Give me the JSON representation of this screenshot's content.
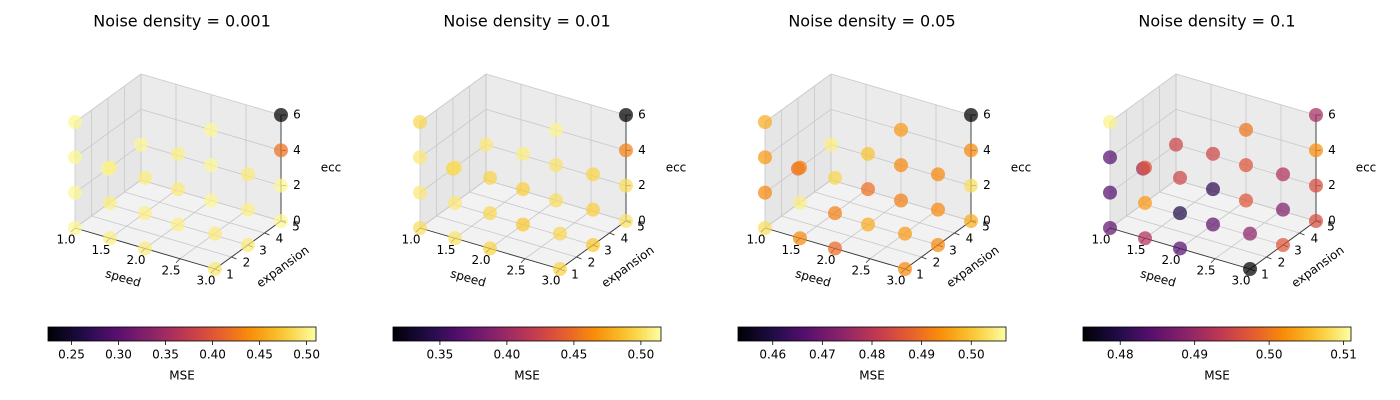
{
  "chart_data": [
    {
      "type": "scatter",
      "title": "Noise density = 0.001",
      "xlabel": "speed",
      "ylabel": "expansion",
      "zlabel": "ecc",
      "x_ticks": [
        "1.0",
        "1.5",
        "2.0",
        "2.5",
        "3.0"
      ],
      "y_ticks": [
        "1",
        "2",
        "3",
        "4",
        "5"
      ],
      "z_ticks": [
        "0",
        "2",
        "4",
        "6"
      ],
      "xlim": [
        1.0,
        3.0
      ],
      "ylim": [
        1,
        5
      ],
      "zlim": [
        0,
        6
      ],
      "colorbar": {
        "label": "MSE",
        "min": 0.225,
        "max": 0.51,
        "ticks": [
          "0.25",
          "0.30",
          "0.35",
          "0.40",
          "0.45",
          "0.50"
        ],
        "tick_values": [
          0.25,
          0.3,
          0.35,
          0.4,
          0.45,
          0.5
        ]
      },
      "points": [
        {
          "x": 1.0,
          "y": 1,
          "z": 0,
          "mse": 0.505
        },
        {
          "x": 1.5,
          "y": 1,
          "z": 0,
          "mse": 0.5
        },
        {
          "x": 2.0,
          "y": 1,
          "z": 0,
          "mse": 0.498
        },
        {
          "x": 3.0,
          "y": 1,
          "z": 0,
          "mse": 0.495
        },
        {
          "x": 1.0,
          "y": 1,
          "z": 2,
          "mse": 0.505
        },
        {
          "x": 1.5,
          "y": 1,
          "z": 2,
          "mse": 0.5
        },
        {
          "x": 2.0,
          "y": 1,
          "z": 2,
          "mse": 0.5
        },
        {
          "x": 3.0,
          "y": 1,
          "z": 2,
          "mse": 0.497
        },
        {
          "x": 1.0,
          "y": 1,
          "z": 4,
          "mse": 0.505
        },
        {
          "x": 1.5,
          "y": 1,
          "z": 4,
          "mse": 0.5
        },
        {
          "x": 2.0,
          "y": 1,
          "z": 4,
          "mse": 0.498
        },
        {
          "x": 1.0,
          "y": 1,
          "z": 6,
          "mse": 0.505
        },
        {
          "x": 2.0,
          "y": 3,
          "z": 0,
          "mse": 0.5
        },
        {
          "x": 3.0,
          "y": 3,
          "z": 0,
          "mse": 0.497
        },
        {
          "x": 1.0,
          "y": 3,
          "z": 2,
          "mse": 0.505
        },
        {
          "x": 2.0,
          "y": 3,
          "z": 2,
          "mse": 0.497
        },
        {
          "x": 3.0,
          "y": 3,
          "z": 2,
          "mse": 0.5
        },
        {
          "x": 2.0,
          "y": 3,
          "z": 4,
          "mse": 0.5
        },
        {
          "x": 3.0,
          "y": 3,
          "z": 4,
          "mse": 0.497
        },
        {
          "x": 2.0,
          "y": 5,
          "z": 0,
          "mse": 0.505
        },
        {
          "x": 3.0,
          "y": 5,
          "z": 0,
          "mse": 0.505
        },
        {
          "x": 1.0,
          "y": 5,
          "z": 2,
          "mse": 0.505
        },
        {
          "x": 2.0,
          "y": 5,
          "z": 2,
          "mse": 0.505
        },
        {
          "x": 3.0,
          "y": 5,
          "z": 2,
          "mse": 0.505
        },
        {
          "x": 2.0,
          "y": 5,
          "z": 4,
          "mse": 0.505
        },
        {
          "x": 3.0,
          "y": 5,
          "z": 4,
          "mse": 0.42
        },
        {
          "x": 3.0,
          "y": 5,
          "z": 6,
          "mse": 0.225
        }
      ]
    },
    {
      "type": "scatter",
      "title": "Noise density = 0.01",
      "xlabel": "speed",
      "ylabel": "expansion",
      "zlabel": "ecc",
      "x_ticks": [
        "1.0",
        "1.5",
        "2.0",
        "2.5",
        "3.0"
      ],
      "y_ticks": [
        "1",
        "2",
        "3",
        "4",
        "5"
      ],
      "z_ticks": [
        "0",
        "2",
        "4",
        "6"
      ],
      "xlim": [
        1.0,
        3.0
      ],
      "ylim": [
        1,
        5
      ],
      "zlim": [
        0,
        6
      ],
      "colorbar": {
        "label": "MSE",
        "min": 0.315,
        "max": 0.515,
        "ticks": [
          "0.35",
          "0.40",
          "0.45",
          "0.50"
        ],
        "tick_values": [
          0.35,
          0.4,
          0.45,
          0.5
        ]
      },
      "points": [
        {
          "x": 1.0,
          "y": 1,
          "z": 0,
          "mse": 0.5
        },
        {
          "x": 1.5,
          "y": 1,
          "z": 0,
          "mse": 0.502
        },
        {
          "x": 2.0,
          "y": 1,
          "z": 0,
          "mse": 0.495
        },
        {
          "x": 3.0,
          "y": 1,
          "z": 0,
          "mse": 0.495
        },
        {
          "x": 1.0,
          "y": 1,
          "z": 2,
          "mse": 0.505
        },
        {
          "x": 1.5,
          "y": 1,
          "z": 2,
          "mse": 0.505
        },
        {
          "x": 2.0,
          "y": 1,
          "z": 2,
          "mse": 0.497
        },
        {
          "x": 3.0,
          "y": 1,
          "z": 2,
          "mse": 0.497
        },
        {
          "x": 1.0,
          "y": 1,
          "z": 4,
          "mse": 0.505
        },
        {
          "x": 1.5,
          "y": 1,
          "z": 4,
          "mse": 0.5
        },
        {
          "x": 2.0,
          "y": 1,
          "z": 4,
          "mse": 0.495
        },
        {
          "x": 1.0,
          "y": 1,
          "z": 6,
          "mse": 0.497
        },
        {
          "x": 2.0,
          "y": 3,
          "z": 0,
          "mse": 0.49
        },
        {
          "x": 3.0,
          "y": 3,
          "z": 0,
          "mse": 0.49
        },
        {
          "x": 1.0,
          "y": 3,
          "z": 2,
          "mse": 0.495
        },
        {
          "x": 2.0,
          "y": 3,
          "z": 2,
          "mse": 0.493
        },
        {
          "x": 3.0,
          "y": 3,
          "z": 2,
          "mse": 0.493
        },
        {
          "x": 2.0,
          "y": 3,
          "z": 4,
          "mse": 0.507
        },
        {
          "x": 3.0,
          "y": 3,
          "z": 4,
          "mse": 0.495
        },
        {
          "x": 2.0,
          "y": 5,
          "z": 0,
          "mse": 0.5
        },
        {
          "x": 3.0,
          "y": 5,
          "z": 0,
          "mse": 0.502
        },
        {
          "x": 1.0,
          "y": 5,
          "z": 2,
          "mse": 0.505
        },
        {
          "x": 2.0,
          "y": 5,
          "z": 2,
          "mse": 0.502
        },
        {
          "x": 3.0,
          "y": 5,
          "z": 2,
          "mse": 0.5
        },
        {
          "x": 2.0,
          "y": 5,
          "z": 4,
          "mse": 0.51
        },
        {
          "x": 3.0,
          "y": 5,
          "z": 4,
          "mse": 0.46
        },
        {
          "x": 3.0,
          "y": 5,
          "z": 6,
          "mse": 0.315
        }
      ]
    },
    {
      "type": "scatter",
      "title": "Noise density = 0.05",
      "xlabel": "speed",
      "ylabel": "expansion",
      "zlabel": "ecc",
      "x_ticks": [
        "1.0",
        "1.5",
        "2.0",
        "2.5",
        "3.0"
      ],
      "y_ticks": [
        "1",
        "2",
        "3",
        "4",
        "5"
      ],
      "z_ticks": [
        "0",
        "2",
        "4",
        "6"
      ],
      "xlim": [
        1.0,
        3.0
      ],
      "ylim": [
        1,
        5
      ],
      "zlim": [
        0,
        6
      ],
      "colorbar": {
        "label": "MSE",
        "min": 0.453,
        "max": 0.507,
        "ticks": [
          "0.46",
          "0.47",
          "0.48",
          "0.49",
          "0.50"
        ],
        "tick_values": [
          0.46,
          0.47,
          0.48,
          0.49,
          0.5
        ]
      },
      "points": [
        {
          "x": 1.0,
          "y": 1,
          "z": 0,
          "mse": 0.503
        },
        {
          "x": 1.5,
          "y": 1,
          "z": 0,
          "mse": 0.493
        },
        {
          "x": 2.0,
          "y": 1,
          "z": 0,
          "mse": 0.489
        },
        {
          "x": 3.0,
          "y": 1,
          "z": 0,
          "mse": 0.493
        },
        {
          "x": 1.0,
          "y": 1,
          "z": 2,
          "mse": 0.493
        },
        {
          "x": 1.5,
          "y": 1,
          "z": 2,
          "mse": 0.505
        },
        {
          "x": 2.0,
          "y": 1,
          "z": 2,
          "mse": 0.492
        },
        {
          "x": 3.0,
          "y": 1,
          "z": 2,
          "mse": 0.495
        },
        {
          "x": 1.0,
          "y": 1,
          "z": 4,
          "mse": 0.495
        },
        {
          "x": 1.5,
          "y": 1,
          "z": 4,
          "mse": 0.492
        },
        {
          "x": 2.0,
          "y": 1,
          "z": 4,
          "mse": 0.502
        },
        {
          "x": 1.0,
          "y": 1,
          "z": 6,
          "mse": 0.497
        },
        {
          "x": 2.0,
          "y": 3,
          "z": 0,
          "mse": 0.497
        },
        {
          "x": 3.0,
          "y": 3,
          "z": 0,
          "mse": 0.493
        },
        {
          "x": 1.0,
          "y": 3,
          "z": 2,
          "mse": 0.489
        },
        {
          "x": 2.0,
          "y": 3,
          "z": 2,
          "mse": 0.49
        },
        {
          "x": 3.0,
          "y": 3,
          "z": 2,
          "mse": 0.493
        },
        {
          "x": 2.0,
          "y": 3,
          "z": 4,
          "mse": 0.5
        },
        {
          "x": 3.0,
          "y": 3,
          "z": 4,
          "mse": 0.493
        },
        {
          "x": 2.0,
          "y": 5,
          "z": 0,
          "mse": 0.492
        },
        {
          "x": 3.0,
          "y": 5,
          "z": 0,
          "mse": 0.497
        },
        {
          "x": 1.0,
          "y": 5,
          "z": 2,
          "mse": 0.505
        },
        {
          "x": 2.0,
          "y": 5,
          "z": 2,
          "mse": 0.493
        },
        {
          "x": 3.0,
          "y": 5,
          "z": 2,
          "mse": 0.503
        },
        {
          "x": 2.0,
          "y": 5,
          "z": 4,
          "mse": 0.495
        },
        {
          "x": 3.0,
          "y": 5,
          "z": 4,
          "mse": 0.493
        },
        {
          "x": 3.0,
          "y": 5,
          "z": 6,
          "mse": 0.453
        }
      ]
    },
    {
      "type": "scatter",
      "title": "Noise density = 0.1",
      "xlabel": "speed",
      "ylabel": "expansion",
      "zlabel": "ecc",
      "x_ticks": [
        "1.0",
        "1.5",
        "2.0",
        "2.5",
        "3.0"
      ],
      "y_ticks": [
        "1",
        "2",
        "3",
        "4",
        "5"
      ],
      "z_ticks": [
        "0",
        "2",
        "4",
        "6"
      ],
      "xlim": [
        1.0,
        3.0
      ],
      "ylim": [
        1,
        5
      ],
      "zlim": [
        0,
        6
      ],
      "colorbar": {
        "label": "MSE",
        "min": 0.475,
        "max": 0.511,
        "ticks": [
          "0.48",
          "0.49",
          "0.50",
          "0.51"
        ],
        "tick_values": [
          0.48,
          0.49,
          0.5,
          0.51
        ]
      },
      "points": [
        {
          "x": 1.0,
          "y": 1,
          "z": 0,
          "mse": 0.485
        },
        {
          "x": 1.5,
          "y": 1,
          "z": 0,
          "mse": 0.492
        },
        {
          "x": 2.0,
          "y": 1,
          "z": 0,
          "mse": 0.484
        },
        {
          "x": 3.0,
          "y": 1,
          "z": 0,
          "mse": 0.475
        },
        {
          "x": 1.0,
          "y": 1,
          "z": 2,
          "mse": 0.484
        },
        {
          "x": 1.5,
          "y": 1,
          "z": 2,
          "mse": 0.503
        },
        {
          "x": 2.0,
          "y": 1,
          "z": 2,
          "mse": 0.48
        },
        {
          "x": 3.0,
          "y": 1,
          "z": 2,
          "mse": 0.489
        },
        {
          "x": 1.0,
          "y": 1,
          "z": 4,
          "mse": 0.484
        },
        {
          "x": 1.5,
          "y": 1,
          "z": 4,
          "mse": 0.497
        },
        {
          "x": 2.0,
          "y": 1,
          "z": 4,
          "mse": 0.495
        },
        {
          "x": 1.0,
          "y": 1,
          "z": 6,
          "mse": 0.51
        },
        {
          "x": 2.0,
          "y": 3,
          "z": 0,
          "mse": 0.485
        },
        {
          "x": 3.0,
          "y": 3,
          "z": 0,
          "mse": 0.497
        },
        {
          "x": 1.0,
          "y": 3,
          "z": 2,
          "mse": 0.49
        },
        {
          "x": 2.0,
          "y": 3,
          "z": 2,
          "mse": 0.481
        },
        {
          "x": 3.0,
          "y": 3,
          "z": 2,
          "mse": 0.488
        },
        {
          "x": 2.0,
          "y": 3,
          "z": 4,
          "mse": 0.495
        },
        {
          "x": 3.0,
          "y": 3,
          "z": 4,
          "mse": 0.492
        },
        {
          "x": 2.0,
          "y": 5,
          "z": 0,
          "mse": 0.497
        },
        {
          "x": 3.0,
          "y": 5,
          "z": 0,
          "mse": 0.496
        },
        {
          "x": 1.0,
          "y": 5,
          "z": 2,
          "mse": 0.495
        },
        {
          "x": 2.0,
          "y": 5,
          "z": 2,
          "mse": 0.497
        },
        {
          "x": 3.0,
          "y": 5,
          "z": 2,
          "mse": 0.496
        },
        {
          "x": 2.0,
          "y": 5,
          "z": 4,
          "mse": 0.5
        },
        {
          "x": 3.0,
          "y": 5,
          "z": 4,
          "mse": 0.502
        },
        {
          "x": 3.0,
          "y": 5,
          "z": 6,
          "mse": 0.491
        }
      ]
    }
  ]
}
